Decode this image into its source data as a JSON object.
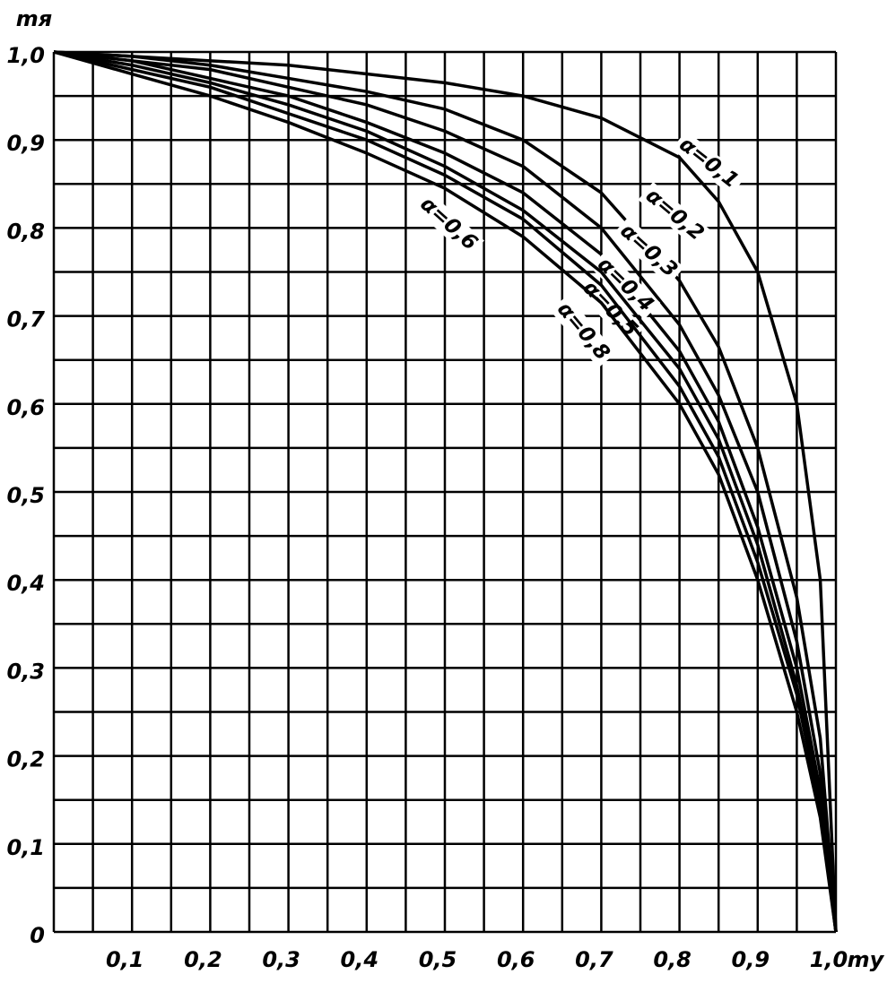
{
  "chart_data": {
    "type": "line",
    "x_label": "my",
    "y_label": "mя",
    "x": [
      0,
      0.1,
      0.2,
      0.3,
      0.4,
      0.5,
      0.6,
      0.7,
      0.8,
      0.85,
      0.9,
      0.95,
      0.98,
      1.0
    ],
    "series": [
      {
        "name": "α=0,1",
        "color": "#000000",
        "values": [
          1,
          0.995,
          0.99,
          0.985,
          0.975,
          0.965,
          0.95,
          0.925,
          0.88,
          0.83,
          0.75,
          0.6,
          0.4,
          0
        ]
      },
      {
        "name": "α=0,2",
        "color": "#000000",
        "values": [
          1,
          0.995,
          0.985,
          0.97,
          0.955,
          0.935,
          0.9,
          0.84,
          0.74,
          0.665,
          0.55,
          0.38,
          0.22,
          0
        ]
      },
      {
        "name": "α=0,3",
        "color": "#000000",
        "values": [
          1,
          0.99,
          0.98,
          0.96,
          0.94,
          0.91,
          0.87,
          0.8,
          0.69,
          0.61,
          0.5,
          0.33,
          0.18,
          0
        ]
      },
      {
        "name": "α=0,4",
        "color": "#000000",
        "values": [
          1,
          0.99,
          0.97,
          0.95,
          0.92,
          0.885,
          0.84,
          0.77,
          0.66,
          0.58,
          0.46,
          0.3,
          0.16,
          0
        ]
      },
      {
        "name": "α=0,5",
        "color": "#000000",
        "values": [
          1,
          0.985,
          0.965,
          0.94,
          0.91,
          0.87,
          0.82,
          0.75,
          0.64,
          0.56,
          0.44,
          0.28,
          0.15,
          0
        ]
      },
      {
        "name": "α=0,6",
        "color": "#000000",
        "values": [
          1,
          0.98,
          0.96,
          0.93,
          0.9,
          0.86,
          0.81,
          0.735,
          0.62,
          0.54,
          0.42,
          0.27,
          0.14,
          0
        ]
      },
      {
        "name": "α=0,8",
        "color": "#000000",
        "values": [
          1,
          0.975,
          0.95,
          0.92,
          0.885,
          0.845,
          0.79,
          0.715,
          0.6,
          0.52,
          0.4,
          0.25,
          0.13,
          0
        ]
      }
    ],
    "xlim": [
      0,
      1
    ],
    "ylim": [
      0,
      1
    ],
    "xticks": [
      {
        "value": 0.1,
        "label": "0,1"
      },
      {
        "value": 0.2,
        "label": "0,2"
      },
      {
        "value": 0.3,
        "label": "0,3"
      },
      {
        "value": 0.4,
        "label": "0,4"
      },
      {
        "value": 0.5,
        "label": "0,5"
      },
      {
        "value": 0.6,
        "label": "0,6"
      },
      {
        "value": 0.7,
        "label": "0,7"
      },
      {
        "value": 0.8,
        "label": "0,8"
      },
      {
        "value": 0.9,
        "label": "0,9"
      },
      {
        "value": 1,
        "label": "1,0"
      }
    ],
    "yticks": [
      0,
      {
        "value": 0.1,
        "label": "0,1"
      },
      {
        "value": 0.2,
        "label": "0,2"
      },
      {
        "value": 0.3,
        "label": "0,3"
      },
      {
        "value": 0.4,
        "label": "0,4"
      },
      {
        "value": 0.5,
        "label": "0,5"
      },
      {
        "value": 0.6,
        "label": "0,6"
      },
      {
        "value": 0.7,
        "label": "0,7"
      },
      {
        "value": 0.8,
        "label": "0,8"
      },
      {
        "value": 0.9,
        "label": "0,9"
      },
      {
        "value": 1,
        "label": "1,0"
      }
    ],
    "xgrid": [
      0,
      0.05,
      0.1,
      0.15,
      0.2,
      0.25,
      0.3,
      0.35,
      0.4,
      0.45,
      0.5,
      0.55,
      0.6,
      0.65,
      0.7,
      0.75,
      0.8,
      0.85,
      0.9,
      0.95,
      1
    ],
    "ygrid": [
      0,
      0.05,
      0.1,
      0.15,
      0.2,
      0.25,
      0.3,
      0.35,
      0.4,
      0.45,
      0.5,
      0.55,
      0.6,
      0.65,
      0.7,
      0.75,
      0.8,
      0.85,
      0.9,
      0.95,
      1
    ],
    "grid": true
  }
}
